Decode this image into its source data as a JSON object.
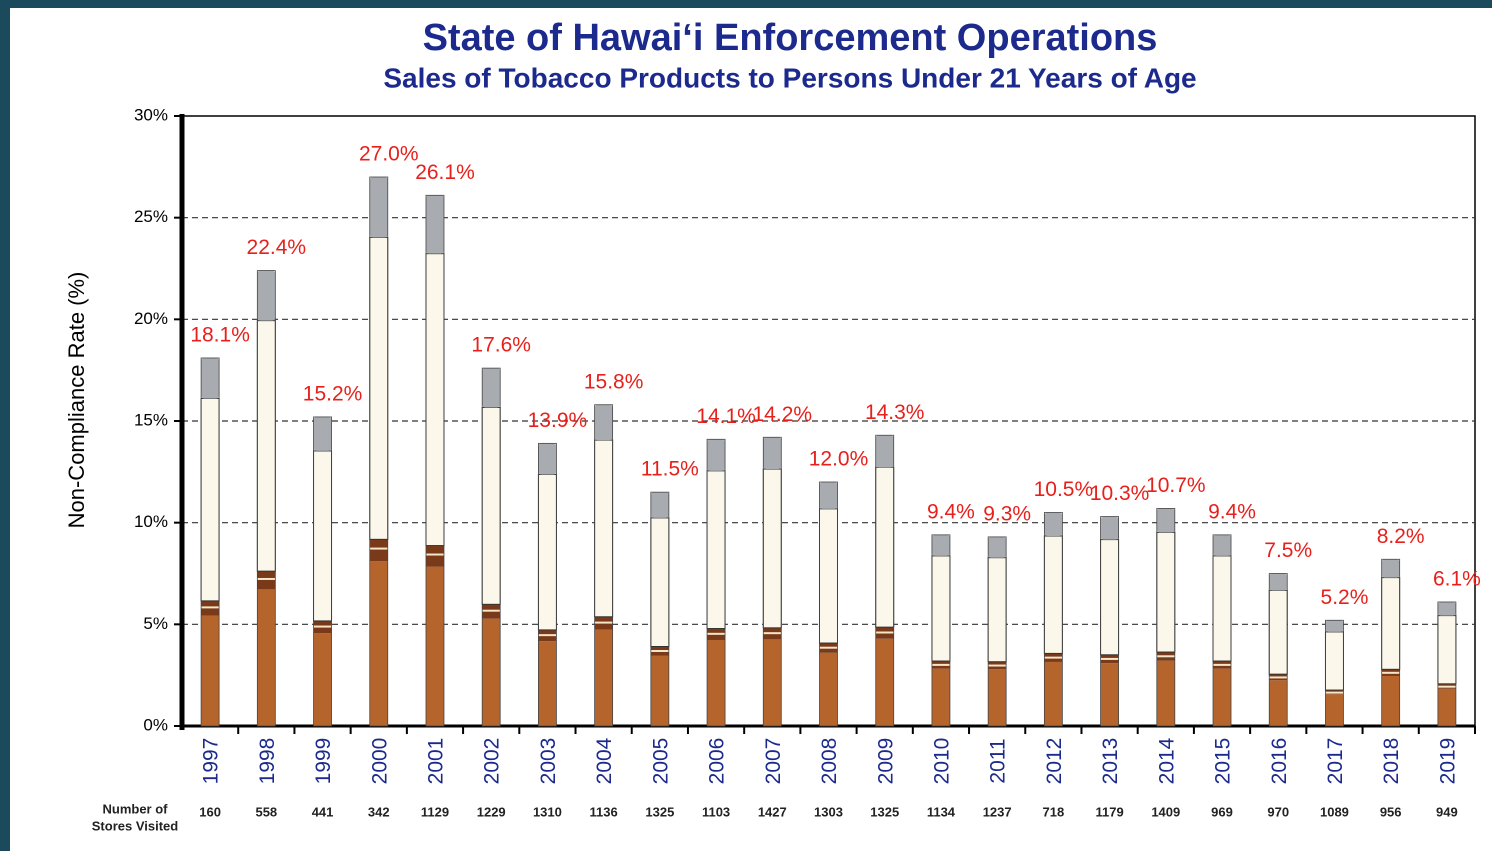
{
  "chart_data": {
    "type": "bar",
    "title": "State of Hawai‘i Enforcement Operations",
    "subtitle": "Sales of Tobacco Products to Persons Under 21 Years of Age",
    "y_label": "Non-Compliance Rate (%)",
    "categories": [
      "1997",
      "1998",
      "1999",
      "2000",
      "2001",
      "2002",
      "2003",
      "2004",
      "2005",
      "2006",
      "2007",
      "2008",
      "2009",
      "2010",
      "2011",
      "2012",
      "2013",
      "2014",
      "2015",
      "2016",
      "2017",
      "2018",
      "2019"
    ],
    "values": [
      18.1,
      22.4,
      15.2,
      27.0,
      26.1,
      17.6,
      13.9,
      15.8,
      11.5,
      14.1,
      14.2,
      12.0,
      14.3,
      9.4,
      9.3,
      10.5,
      10.3,
      10.7,
      9.4,
      7.5,
      5.2,
      8.2,
      6.1
    ],
    "value_labels": [
      "18.1%",
      "22.4%",
      "15.2%",
      "27.0%",
      "26.1%",
      "17.6%",
      "13.9%",
      "15.8%",
      "11.5%",
      "14.1%",
      "14.2%",
      "12.0%",
      "14.3%",
      "9.4%",
      "9.3%",
      "10.5%",
      "10.3%",
      "10.7%",
      "9.4%",
      "7.5%",
      "5.2%",
      "8.2%",
      "6.1%"
    ],
    "stores_label": [
      "Number of",
      "Stores Visited"
    ],
    "stores_visited": [
      160,
      558,
      441,
      342,
      1129,
      1229,
      1310,
      1136,
      1325,
      1103,
      1427,
      1303,
      1325,
      1134,
      1237,
      718,
      1179,
      1409,
      969,
      970,
      1089,
      956,
      949
    ],
    "ylim": [
      0,
      30
    ],
    "yticks": [
      {
        "value": 0,
        "label": "0%"
      },
      {
        "value": 5,
        "label": "5%"
      },
      {
        "value": 10,
        "label": "10%"
      },
      {
        "value": 15,
        "label": "15%"
      },
      {
        "value": 20,
        "label": "20%"
      },
      {
        "value": 25,
        "label": "25%"
      },
      {
        "value": 30,
        "label": "30%"
      }
    ],
    "grid": true,
    "color": "#b5652c"
  }
}
